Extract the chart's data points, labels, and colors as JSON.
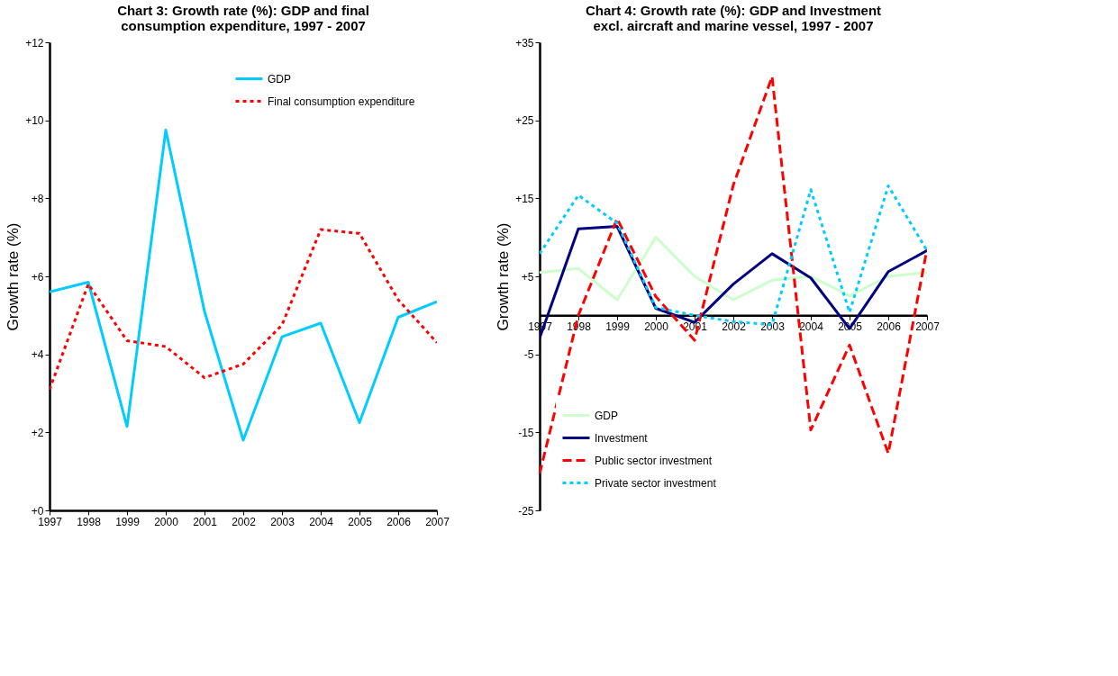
{
  "chart_data": [
    {
      "type": "line",
      "title": [
        "Chart 3: Growth rate (%): GDP and final",
        "consumption expenditure, 1997 - 2007"
      ],
      "ylabel": "Growth rate (%)",
      "categories": [
        "1997",
        "1998",
        "1999",
        "2000",
        "2001",
        "2002",
        "2003",
        "2004",
        "2005",
        "2006",
        "2007"
      ],
      "series": [
        {
          "name": "GDP",
          "color": "#00ccff",
          "line_style": "solid",
          "values": [
            5.6,
            5.85,
            2.15,
            9.75,
            5.1,
            1.8,
            4.45,
            4.8,
            2.25,
            4.95,
            5.35
          ]
        },
        {
          "name": "Final consumption expenditure",
          "color": "#ff0000",
          "line_style": "dotted",
          "values": [
            3.1,
            5.8,
            4.35,
            4.2,
            3.4,
            3.75,
            4.75,
            7.2,
            7.1,
            5.4,
            4.3
          ]
        }
      ],
      "ylim": [
        0,
        12
      ],
      "yticks": [
        {
          "value": 0,
          "label": "+0"
        },
        {
          "value": 2,
          "label": "+2"
        },
        {
          "value": 4,
          "label": "+4"
        },
        {
          "value": 6,
          "label": "+6"
        },
        {
          "value": 8,
          "label": "+8"
        },
        {
          "value": 10,
          "label": "+10"
        },
        {
          "value": 12,
          "label": "+12"
        }
      ],
      "grid": false,
      "legend": "top right"
    },
    {
      "type": "line",
      "title": [
        "Chart 4: Growth rate (%): GDP and Investment",
        "excl. aircraft and marine vessel, 1997 - 2007"
      ],
      "ylabel": "Growth rate (%)",
      "categories": [
        "1997",
        "1998",
        "1999",
        "2000",
        "2001",
        "2002",
        "2003",
        "2004",
        "2005",
        "2006",
        "2007"
      ],
      "series": [
        {
          "name": "GDP",
          "color": "#ccffcc",
          "line_style": "solid",
          "values": [
            5.5,
            6,
            2,
            10,
            5,
            2,
            4.5,
            5,
            2.5,
            5,
            5.5
          ]
        },
        {
          "name": "Investment",
          "color": "#000080",
          "line_style": "solid",
          "values": [
            -2.9,
            11.1,
            11.4,
            0.9,
            -0.9,
            4.0,
            7.9,
            4.8,
            -1.7,
            5.6,
            8.3
          ]
        },
        {
          "name": "Public sector investment",
          "color": "#ff0000",
          "line_style": "dashed",
          "values": [
            -20.3,
            0,
            12.4,
            2.4,
            -3.2,
            16.7,
            30.6,
            -14.7,
            -3.8,
            -17.7,
            8.5
          ]
        },
        {
          "name": "Private sector investment",
          "color": "#00ccff",
          "line_style": "dotted",
          "values": [
            7.9,
            15.4,
            11.8,
            1.0,
            0,
            -0.8,
            -1.2,
            16.1,
            0.4,
            16.6,
            8.3
          ]
        }
      ],
      "ylim": [
        -25,
        35
      ],
      "yticks": [
        -25,
        -15,
        -5,
        {
          "value": 5,
          "label": "+5"
        },
        {
          "value": 15,
          "label": "+15"
        },
        {
          "value": 25,
          "label": "+25"
        },
        {
          "value": 35,
          "label": "+35"
        }
      ],
      "grid": false,
      "legend": "bottom left"
    }
  ]
}
